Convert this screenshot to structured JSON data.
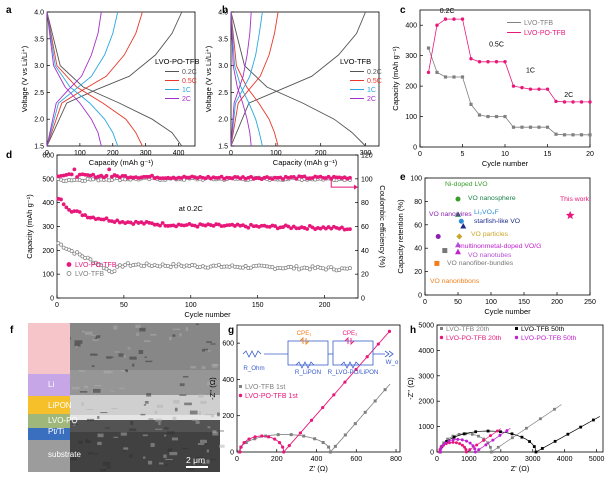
{
  "panel_letters": [
    "a",
    "b",
    "c",
    "d",
    "e",
    "f",
    "g",
    "h"
  ],
  "colors": {
    "c02": "#555555",
    "c05": "#e8382c",
    "c1": "#29a8e0",
    "c2": "#a42fc9",
    "pink": "#e8187a",
    "gray": "#808080",
    "black": "#000000",
    "magenta": "#c21fd0"
  },
  "chart_data": [
    {
      "panel": "a",
      "type": "line",
      "xlabel": "Capacity (mAh g⁻¹)",
      "ylabel": "Voltage (V vs Li/Li⁺)",
      "xlim": [
        0,
        450
      ],
      "ylim": [
        1.5,
        4.0
      ],
      "xticks": [
        "0",
        "100",
        "200",
        "300",
        "400"
      ],
      "yticks": [
        "1.5",
        "2.0",
        "2.5",
        "3.0",
        "3.5",
        "4.0"
      ],
      "legend_title": "LVO-PO-TFB",
      "series": [
        {
          "name": "0.2C",
          "color": "#555555",
          "discharge_x": [
            0,
            40,
            110,
            220,
            320,
            380,
            410
          ],
          "discharge_y": [
            4.0,
            3.0,
            2.6,
            2.3,
            2.0,
            1.75,
            1.5
          ],
          "charge_x": [
            0,
            60,
            150,
            250,
            330,
            380,
            410
          ],
          "charge_y": [
            1.5,
            2.3,
            2.55,
            2.8,
            3.2,
            3.6,
            4.0
          ]
        },
        {
          "name": "0.5C",
          "color": "#e8382c",
          "discharge_x": [
            0,
            30,
            90,
            170,
            240,
            270,
            290
          ],
          "discharge_y": [
            4.0,
            3.0,
            2.6,
            2.3,
            2.0,
            1.75,
            1.5
          ],
          "charge_x": [
            0,
            45,
            110,
            180,
            235,
            270,
            290
          ],
          "charge_y": [
            1.5,
            2.3,
            2.55,
            2.8,
            3.2,
            3.6,
            4.0
          ]
        },
        {
          "name": "1C",
          "color": "#29a8e0",
          "discharge_x": [
            0,
            25,
            70,
            130,
            175,
            200,
            215
          ],
          "discharge_y": [
            4.0,
            3.0,
            2.6,
            2.3,
            2.0,
            1.75,
            1.5
          ],
          "charge_x": [
            0,
            35,
            85,
            135,
            175,
            200,
            215
          ],
          "charge_y": [
            1.5,
            2.3,
            2.55,
            2.8,
            3.2,
            3.6,
            4.0
          ]
        },
        {
          "name": "2C",
          "color": "#a42fc9",
          "discharge_x": [
            0,
            20,
            55,
            100,
            135,
            155,
            165
          ],
          "discharge_y": [
            4.0,
            3.0,
            2.6,
            2.3,
            2.0,
            1.75,
            1.5
          ],
          "charge_x": [
            0,
            28,
            65,
            105,
            135,
            155,
            165
          ],
          "charge_y": [
            1.5,
            2.3,
            2.55,
            2.8,
            3.2,
            3.6,
            4.0
          ]
        }
      ]
    },
    {
      "panel": "b",
      "type": "line",
      "xlabel": "Capacity (mAh g⁻¹)",
      "ylabel": "Voltage (V vs Li/Li⁺)",
      "xlim": [
        0,
        330
      ],
      "ylim": [
        1.5,
        4.0
      ],
      "xticks": [
        "0",
        "100",
        "200",
        "300"
      ],
      "yticks": [
        "1.5",
        "2.0",
        "2.5",
        "3.0",
        "3.5",
        "4.0"
      ],
      "legend_title": "LVO-TFB",
      "series": [
        {
          "name": "0.2C",
          "color": "#555555",
          "discharge_x": [
            0,
            30,
            80,
            160,
            230,
            270,
            300
          ],
          "discharge_y": [
            4.0,
            3.0,
            2.6,
            2.3,
            2.0,
            1.75,
            1.5
          ],
          "charge_x": [
            0,
            40,
            110,
            180,
            240,
            280,
            300
          ],
          "charge_y": [
            1.5,
            2.3,
            2.55,
            2.8,
            3.2,
            3.6,
            4.0
          ]
        },
        {
          "name": "0.5C",
          "color": "#e8382c",
          "discharge_x": [
            0,
            12,
            35,
            62,
            85,
            97,
            105
          ],
          "discharge_y": [
            4.0,
            3.0,
            2.6,
            2.3,
            2.0,
            1.75,
            1.5
          ],
          "charge_x": [
            0,
            16,
            40,
            65,
            85,
            97,
            105
          ],
          "charge_y": [
            1.5,
            2.3,
            2.55,
            2.8,
            3.2,
            3.6,
            4.0
          ]
        },
        {
          "name": "1C",
          "color": "#29a8e0",
          "discharge_x": [
            0,
            8,
            22,
            40,
            55,
            63,
            70
          ],
          "discharge_y": [
            4.0,
            3.0,
            2.6,
            2.3,
            2.0,
            1.75,
            1.5
          ],
          "charge_x": [
            0,
            10,
            26,
            42,
            55,
            63,
            70
          ],
          "charge_y": [
            1.5,
            2.3,
            2.55,
            2.8,
            3.2,
            3.6,
            4.0
          ]
        },
        {
          "name": "2C",
          "color": "#a42fc9",
          "discharge_x": [
            0,
            5,
            14,
            26,
            36,
            42,
            45
          ],
          "discharge_y": [
            4.0,
            3.0,
            2.6,
            2.3,
            2.0,
            1.75,
            1.5
          ],
          "charge_x": [
            0,
            7,
            17,
            27,
            36,
            42,
            45
          ],
          "charge_y": [
            1.5,
            2.3,
            2.55,
            2.8,
            3.2,
            3.6,
            4.0
          ]
        }
      ]
    },
    {
      "panel": "c",
      "type": "line",
      "xlabel": "Cycle number",
      "ylabel": "Capacity (mAh g⁻¹)",
      "xlim": [
        0,
        20
      ],
      "ylim": [
        0,
        450
      ],
      "xticks": [
        "0",
        "5",
        "10",
        "15",
        "20"
      ],
      "yticks": [
        "0",
        "100",
        "200",
        "300",
        "400"
      ],
      "annotations": [
        "0.2C",
        "0.5C",
        "1C",
        "2C"
      ],
      "series": [
        {
          "name": "LVO-TFB",
          "color": "#808080",
          "x": [
            1,
            2,
            3,
            4,
            5,
            6,
            7,
            8,
            9,
            10,
            11,
            12,
            13,
            14,
            15,
            16,
            17,
            18,
            19,
            20
          ],
          "y": [
            325,
            245,
            230,
            230,
            230,
            140,
            105,
            100,
            100,
            100,
            65,
            65,
            65,
            65,
            65,
            42,
            40,
            40,
            40,
            40
          ]
        },
        {
          "name": "LVO-PO-TFB",
          "color": "#e8187a",
          "x": [
            1,
            2,
            3,
            4,
            5,
            6,
            7,
            8,
            9,
            10,
            11,
            12,
            13,
            14,
            15,
            16,
            17,
            18,
            19,
            20
          ],
          "y": [
            245,
            400,
            420,
            420,
            420,
            290,
            280,
            280,
            280,
            280,
            200,
            195,
            190,
            190,
            190,
            150,
            148,
            148,
            148,
            148
          ]
        }
      ]
    },
    {
      "panel": "d",
      "type": "scatter",
      "xlabel": "Cycle number",
      "ylabel": "Capacity (mAh g⁻¹)",
      "y2label": "Coulombic efficiency (%)",
      "xlim": [
        0,
        225
      ],
      "ylim": [
        0,
        600
      ],
      "y2lim": [
        0,
        120
      ],
      "xticks": [
        "0",
        "50",
        "100",
        "150",
        "200"
      ],
      "yticks": [
        "0",
        "100",
        "200",
        "300",
        "400",
        "500",
        "600"
      ],
      "y2ticks": [
        "0",
        "20",
        "40",
        "60",
        "80",
        "100",
        "120"
      ],
      "annotation": "at 0.2C",
      "series": [
        {
          "name": "LVO-PO-TFB",
          "color": "#e8187a",
          "x": [
            1,
            10,
            25,
            50,
            75,
            100,
            150,
            200,
            220
          ],
          "y": [
            420,
            370,
            340,
            320,
            310,
            305,
            300,
            295,
            290
          ]
        },
        {
          "name": "LVO-TFB",
          "color": "#808080",
          "x": [
            1,
            10,
            25,
            35,
            40,
            50,
            100,
            150,
            200,
            220
          ],
          "y": [
            230,
            200,
            160,
            130,
            110,
            140,
            135,
            130,
            125,
            120
          ]
        },
        {
          "name": "LVO-PO-TFB CE",
          "color": "#e8187a",
          "axis": "right",
          "x": [
            1,
            50,
            100,
            150,
            220
          ],
          "y": [
            103,
            102,
            101,
            101,
            101
          ]
        },
        {
          "name": "LVO-TFB CE",
          "color": "#808080",
          "axis": "right",
          "x": [
            1,
            50,
            100,
            150,
            220
          ],
          "y": [
            99,
            100,
            100,
            100,
            100
          ]
        }
      ]
    },
    {
      "panel": "e",
      "type": "scatter",
      "xlabel": "Cycle number",
      "ylabel": "Capacity retention (%)",
      "xlim": [
        0,
        250
      ],
      "ylim": [
        0,
        100
      ],
      "xticks": [
        "0",
        "50",
        "100",
        "150",
        "200",
        "250"
      ],
      "yticks": [
        "0",
        "20",
        "40",
        "60",
        "80",
        "100"
      ],
      "points": [
        {
          "label": "This work",
          "x": 220,
          "y": 68,
          "color": "#e8187a",
          "marker": "star"
        },
        {
          "label": "Ni-doped LVO",
          "x": 50,
          "y": 82,
          "color": "#3a9d2c",
          "marker": "circle"
        },
        {
          "label": "VO nanosphere",
          "x": 50,
          "y": 69,
          "color": "#1a7f4a",
          "marker": "triangle"
        },
        {
          "label": "Li₃VO₄F",
          "x": 55,
          "y": 63,
          "color": "#2d8cd6",
          "marker": "circle"
        },
        {
          "label": "starfish-like VO",
          "x": 58,
          "y": 59,
          "color": "#1b2a8c",
          "marker": "triangle"
        },
        {
          "label": "VO nanowires",
          "x": 20,
          "y": 50,
          "color": "#8a1fb0",
          "marker": "circle"
        },
        {
          "label": "VO particles",
          "x": 52,
          "y": 50,
          "color": "#c9a52a",
          "marker": "diamond"
        },
        {
          "label": "VO nanotubes",
          "x": 50,
          "y": 43,
          "color": "#b44fd6",
          "marker": "triangle"
        },
        {
          "label": "multinonmetal-doped VO/G",
          "x": 50,
          "y": 37,
          "color": "#c21fd0",
          "marker": "triangle"
        },
        {
          "label": "VO nanofiber-bundles",
          "x": 30,
          "y": 38,
          "color": "#777777",
          "marker": "square"
        },
        {
          "label": "VO nanoribbons",
          "x": 18,
          "y": 27,
          "color": "#f07f1a",
          "marker": "square"
        }
      ]
    },
    {
      "panel": "g",
      "type": "scatter",
      "xlabel": "Z' (Ω)",
      "ylabel": "-Z'' (Ω)",
      "xlim": [
        0,
        820
      ],
      "ylim": [
        0,
        700
      ],
      "xticks": [
        "0",
        "200",
        "400",
        "600",
        "800"
      ],
      "yticks": [
        "0",
        "200",
        "400",
        "600"
      ],
      "circuit_labels": [
        "R_Ohm",
        "CPE₁",
        "R_LiPON",
        "CPE₂",
        "R_LVO-PO/LiPON",
        "W_o"
      ],
      "series": [
        {
          "name": "LVO-TFB 1st",
          "color": "#808080"
        },
        {
          "name": "LVO-PO-TFB 1st",
          "color": "#e8187a"
        }
      ]
    },
    {
      "panel": "h",
      "type": "scatter",
      "xlabel": "Z' (Ω)",
      "ylabel": "-Z'' (Ω)",
      "xlim": [
        0,
        5200
      ],
      "ylim": [
        0,
        5000
      ],
      "xticks": [
        "0",
        "1000",
        "2000",
        "3000",
        "4000",
        "5000"
      ],
      "yticks": [
        "0",
        "1000",
        "2000",
        "3000",
        "4000",
        "5000"
      ],
      "series": [
        {
          "name": "LVO-TFB 20th",
          "color": "#808080"
        },
        {
          "name": "LVO-TFB 50th",
          "color": "#000000"
        },
        {
          "name": "LVO-PO-TFB 20th",
          "color": "#e8187a"
        },
        {
          "name": "LVO-PO-TFB 50th",
          "color": "#c21fd0"
        }
      ]
    }
  ],
  "sem": {
    "layers": [
      "Li",
      "LiPON",
      "LVO-PO",
      "Pt/Ti",
      "substrate"
    ],
    "scale": "2 μm"
  }
}
